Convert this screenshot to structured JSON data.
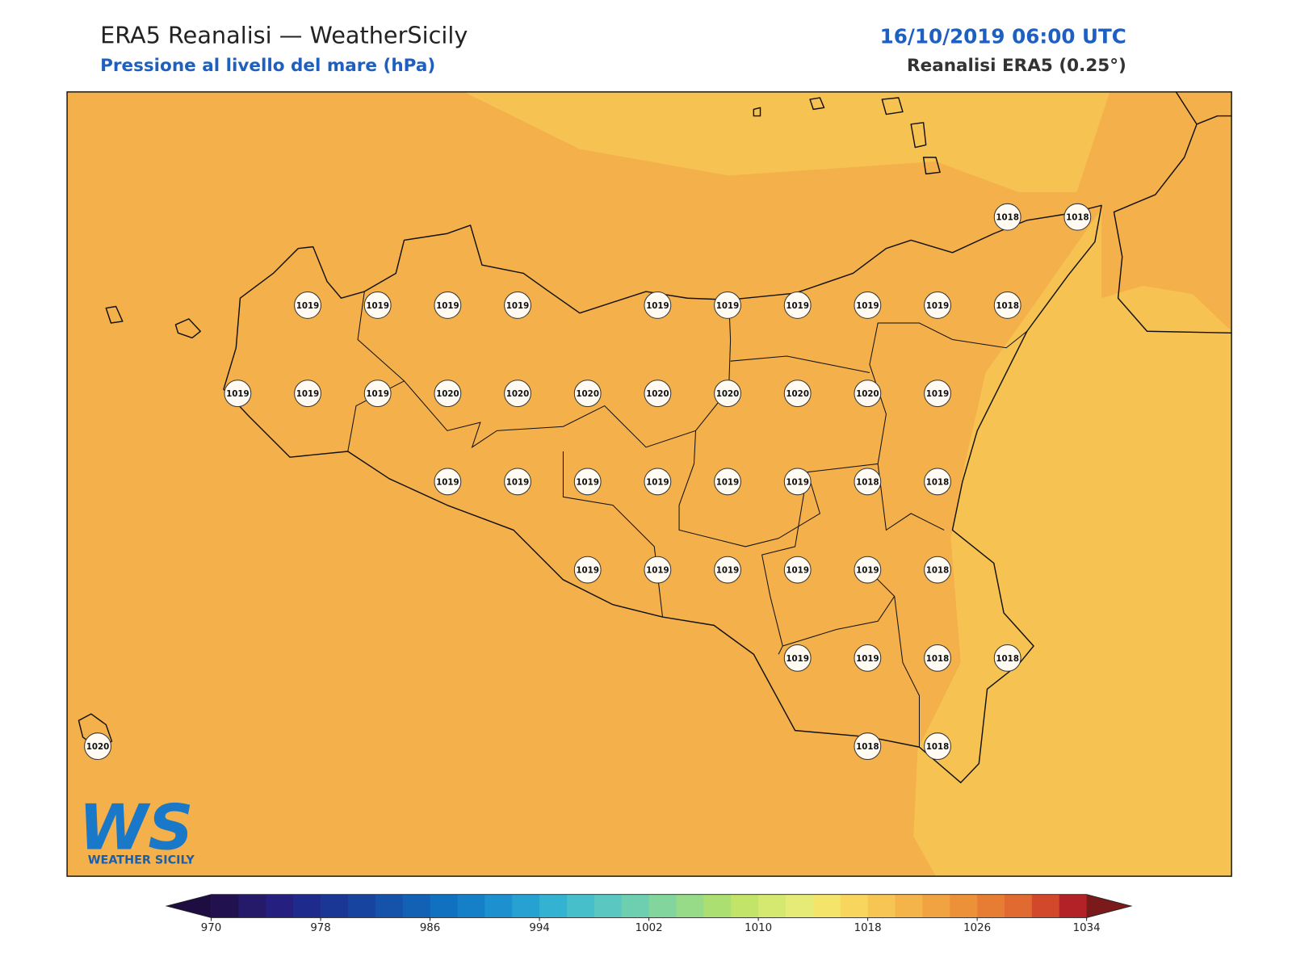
{
  "header": {
    "title": "ERA5 Reanalisi — WeatherSicily",
    "subtitle": "Pressione al livello del mare (hPa)",
    "date": "16/10/2019 06:00 UTC",
    "source": "Reanalisi ERA5 (0.25°)"
  },
  "map": {
    "pressure_labels": [
      1018,
      1018,
      1019,
      1019,
      1019,
      1019,
      1019,
      1019,
      1019,
      1019,
      1019,
      1018,
      1019,
      1019,
      1019,
      1020,
      1020,
      1020,
      1020,
      1020,
      1020,
      1020,
      1019,
      1019,
      1019,
      1019,
      1019,
      1019,
      1019,
      1018,
      1018,
      1019,
      1019,
      1019,
      1019,
      1019,
      1018,
      1019,
      1019,
      1018,
      1018,
      1020,
      1018,
      1018
    ]
  },
  "colorbar": {
    "ticks": [
      970,
      978,
      986,
      994,
      1002,
      1010,
      1018,
      1026,
      1034
    ],
    "colors": [
      "#22114f",
      "#25196a",
      "#252080",
      "#1f2a8d",
      "#1a3796",
      "#17449f",
      "#1553aa",
      "#1261b5",
      "#0f71c0",
      "#1580c8",
      "#1d90cf",
      "#27a0d2",
      "#34b2d2",
      "#46bfcb",
      "#5ac8c0",
      "#6dcfb0",
      "#82d59c",
      "#97da88",
      "#acdf72",
      "#c2e468",
      "#d5e870",
      "#e6eb78",
      "#f5e46a",
      "#f8d55d",
      "#f6c553",
      "#f4b44a",
      "#f0a340",
      "#ec9138",
      "#e67d33",
      "#e06a2f",
      "#d1482b",
      "#b22226"
    ],
    "under_color": "#1e0d40",
    "over_color": "#7a1a1a"
  },
  "logo": {
    "mark": "WS",
    "name": "WEATHER SICILY"
  }
}
